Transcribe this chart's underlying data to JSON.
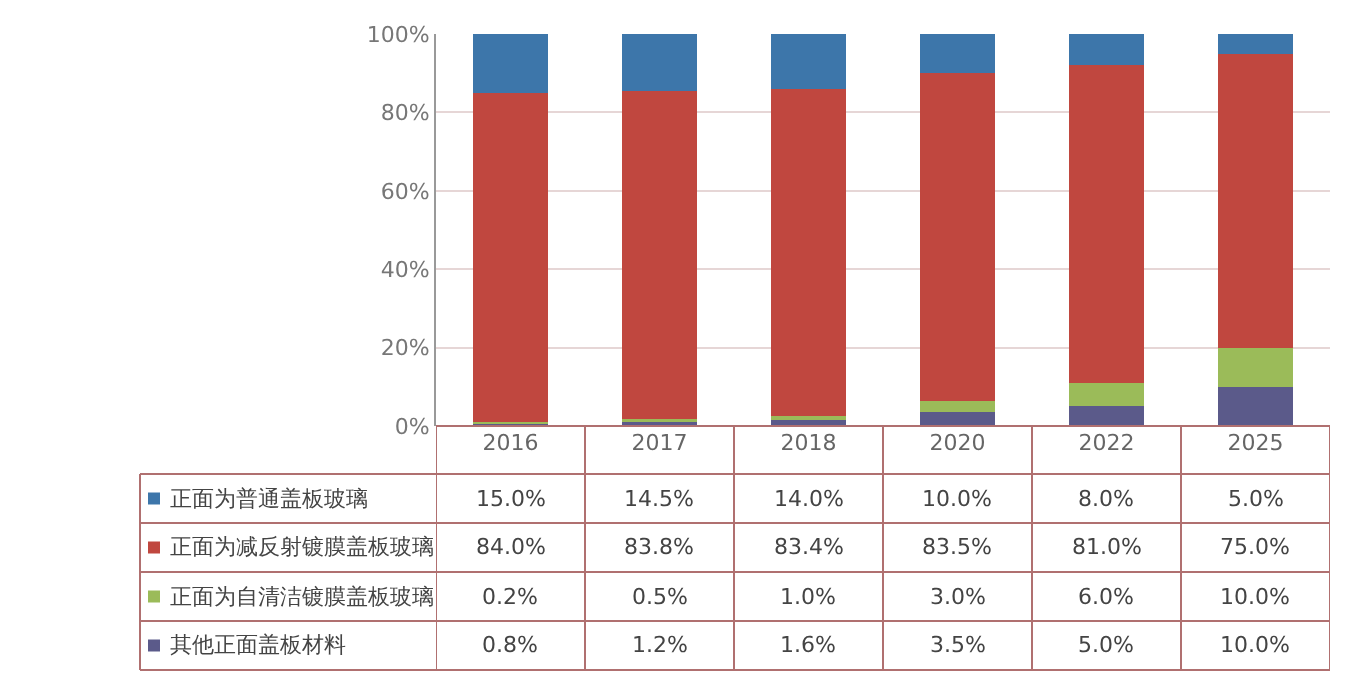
{
  "chart_data": {
    "type": "bar",
    "stacked": true,
    "categories": [
      "2016",
      "2017",
      "2018",
      "2020",
      "2022",
      "2025"
    ],
    "series": [
      {
        "name": "其他正面盖板材料",
        "color": "#5b5a8a",
        "values": [
          0.8,
          1.2,
          1.6,
          3.5,
          5.0,
          10.0
        ],
        "value_labels": [
          "0.8%",
          "1.2%",
          "1.6%",
          "3.5%",
          "5.0%",
          "10.0%"
        ]
      },
      {
        "name": "正面为自清洁镀膜盖板玻璃",
        "color": "#9bbb59",
        "values": [
          0.2,
          0.5,
          1.0,
          3.0,
          6.0,
          10.0
        ],
        "value_labels": [
          "0.2%",
          "0.5%",
          "1.0%",
          "3.0%",
          "6.0%",
          "10.0%"
        ]
      },
      {
        "name": "正面为减反射镀膜盖板玻璃",
        "color": "#c0473f",
        "values": [
          84.0,
          83.8,
          83.4,
          83.5,
          81.0,
          75.0
        ],
        "value_labels": [
          "84.0%",
          "83.8%",
          "83.4%",
          "83.5%",
          "81.0%",
          "75.0%"
        ]
      },
      {
        "name": "正面为普通盖板玻璃",
        "color": "#3d76aa",
        "values": [
          15.0,
          14.5,
          14.0,
          10.0,
          8.0,
          5.0
        ],
        "value_labels": [
          "15.0%",
          "14.5%",
          "14.0%",
          "10.0%",
          "8.0%",
          "5.0%"
        ]
      }
    ],
    "ylim": [
      0,
      100
    ],
    "yticks": [
      {
        "value": 0,
        "label": "0%"
      },
      {
        "value": 20,
        "label": "20%"
      },
      {
        "value": 40,
        "label": "40%"
      },
      {
        "value": 60,
        "label": "60%"
      },
      {
        "value": 80,
        "label": "80%"
      },
      {
        "value": 100,
        "label": "100%"
      }
    ],
    "grid": "y",
    "legend": "bottom left"
  }
}
